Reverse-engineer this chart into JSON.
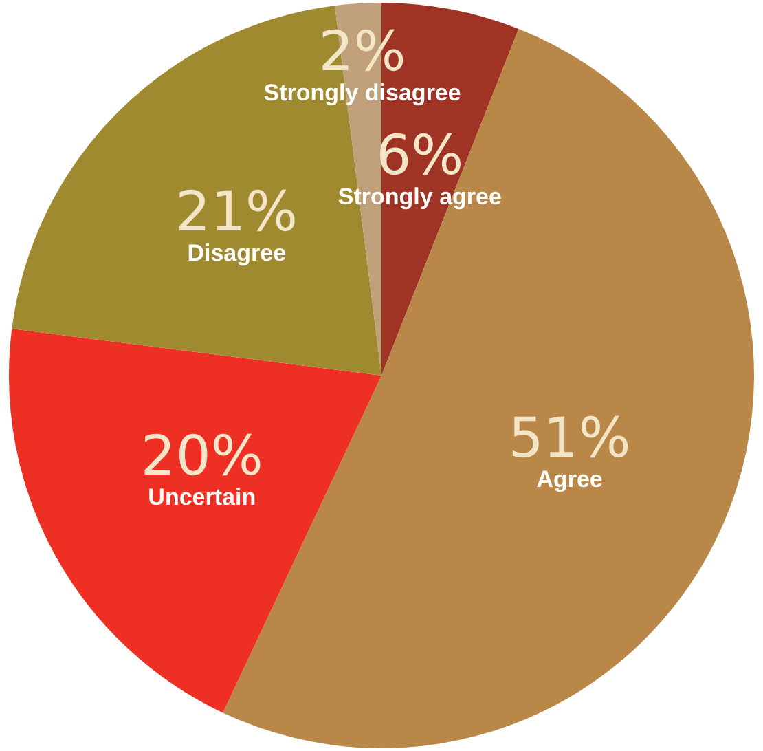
{
  "chart_data": {
    "type": "pie",
    "categories": [
      "Strongly agree",
      "Agree",
      "Uncertain",
      "Disagree",
      "Strongly disagree"
    ],
    "values": [
      6,
      51,
      20,
      21,
      2
    ],
    "colors": [
      "#a03424",
      "#b98848",
      "#ee3024",
      "#a08a30",
      "#c0a07a"
    ],
    "value_labels": [
      "6%",
      "51%",
      "20%",
      "21%",
      "2%"
    ],
    "legend": false
  }
}
